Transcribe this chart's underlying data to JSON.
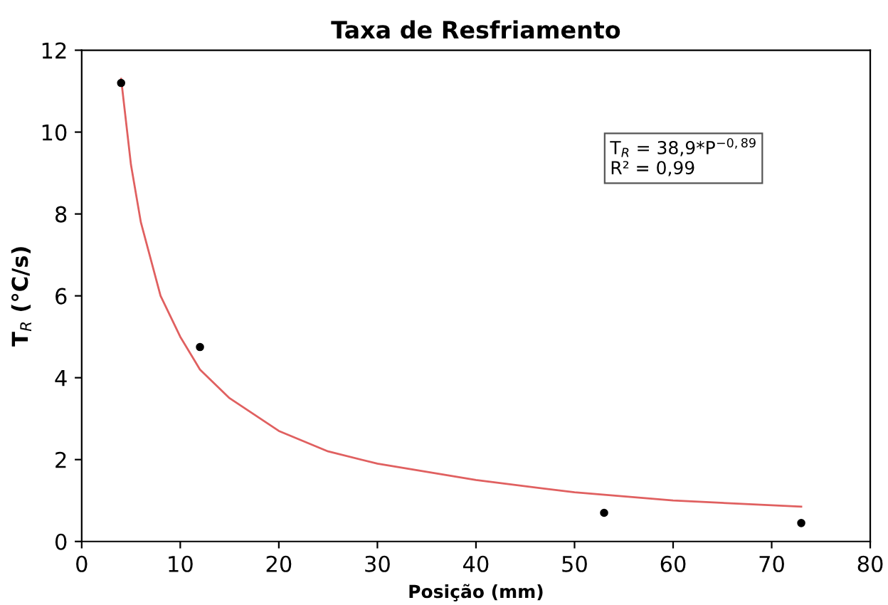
{
  "chart_data": {
    "type": "scatter",
    "title": "Taxa de Resfriamento",
    "xlabel": "Posição (mm)",
    "ylabel": "T$_{R}$ (°C/s)",
    "xlim": [
      0,
      80
    ],
    "xticks": [
      0,
      10,
      20,
      30,
      40,
      50,
      60,
      70,
      80
    ],
    "ylim": [
      0,
      12
    ],
    "yticks": [
      0,
      2,
      4,
      6,
      8,
      10,
      12
    ],
    "grid": false,
    "marker": "circle",
    "annotations": [
      "T$_{R}$ = 38,9*P$^{−0,89}$\nR² = 0,99"
    ],
    "series": [
      {
        "color": "#000000",
        "x": [
          4,
          12,
          53,
          73
        ],
        "values": [
          11.2,
          4.75,
          0.7,
          0.45
        ]
      },
      {
        "type": "line",
        "color": "#e06060",
        "line_style": "solid",
        "marker": "none",
        "x": [
          4,
          5,
          6,
          8,
          10,
          12,
          15,
          20,
          25,
          30,
          40,
          50,
          60,
          73
        ],
        "values": [
          11.3,
          9.2,
          7.8,
          6.0,
          5.0,
          4.2,
          3.5,
          2.7,
          2.2,
          1.9,
          1.5,
          1.2,
          1.0,
          0.85
        ]
      }
    ]
  }
}
